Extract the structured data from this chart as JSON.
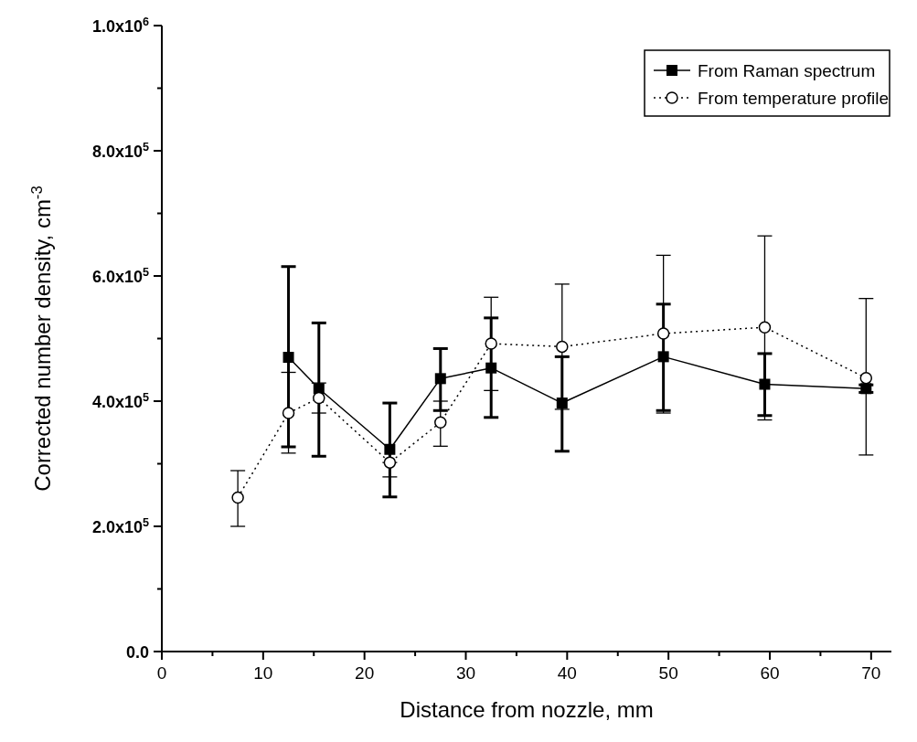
{
  "chart_data": {
    "type": "line",
    "xlabel": "Distance from nozzle, mm",
    "ylabel": "Corrected number density, cm$^{-3}$",
    "xlim": [
      0,
      72
    ],
    "ylim": [
      0,
      1000000
    ],
    "xticks": [
      0,
      {
        "value": 5,
        "label": null
      },
      10,
      {
        "value": 15,
        "label": null
      },
      20,
      {
        "value": 25,
        "label": null
      },
      30,
      {
        "value": 35,
        "label": null
      },
      40,
      {
        "value": 45,
        "label": null
      },
      50,
      {
        "value": 55,
        "label": null
      },
      60,
      {
        "value": 65,
        "label": null
      },
      70
    ],
    "yticks": [
      {
        "value": 0,
        "label": "0.0"
      },
      {
        "value": 100000,
        "label": null
      },
      {
        "value": 200000,
        "label": "2.0x10$^{5}$"
      },
      {
        "value": 300000,
        "label": null
      },
      {
        "value": 400000,
        "label": "4.0x10$^{5}$"
      },
      {
        "value": 500000,
        "label": null
      },
      {
        "value": 600000,
        "label": "6.0x10$^{5}$"
      },
      {
        "value": 700000,
        "label": null
      },
      {
        "value": 800000,
        "label": "8.0x10$^{5}$"
      },
      {
        "value": 900000,
        "label": null
      },
      {
        "value": 1000000,
        "label": "1.0x10$^{6}$"
      }
    ],
    "grid": false,
    "legend": "top right",
    "series": [
      {
        "name": "From Raman spectrum",
        "color": "#000000",
        "marker": "square",
        "line_style": "solid",
        "x": [
          12.5,
          15.5,
          22.5,
          27.5,
          32.5,
          39.5,
          49.5,
          59.5,
          69.5
        ],
        "values": [
          470000,
          420000,
          323000,
          436000,
          453000,
          397000,
          471000,
          427000,
          420000
        ],
        "errors": [
          [
            327000,
            615000
          ],
          [
            312000,
            525000
          ],
          [
            247000,
            397000
          ],
          [
            385000,
            484000
          ],
          [
            374000,
            533000
          ],
          [
            320000,
            471000
          ],
          [
            385000,
            555000
          ],
          [
            377000,
            476000
          ],
          [
            414000,
            426000
          ]
        ]
      },
      {
        "name": "From temperature profile",
        "color": "#000000",
        "marker": "circle",
        "line_style": "dotted",
        "x": [
          7.5,
          12.5,
          15.5,
          22.5,
          27.5,
          32.5,
          39.5,
          49.5,
          59.5,
          69.5
        ],
        "values": [
          246000,
          381000,
          405000,
          302000,
          366000,
          492000,
          487000,
          508000,
          518000,
          437000
        ],
        "errors": [
          [
            200000,
            289000
          ],
          [
            317000,
            446000
          ],
          [
            381000,
            429000
          ],
          [
            279000,
            302000
          ],
          [
            328000,
            400000
          ],
          [
            417000,
            566000
          ],
          [
            387000,
            587000
          ],
          [
            381000,
            633000
          ],
          [
            370000,
            664000
          ],
          [
            314000,
            564000
          ]
        ]
      }
    ]
  }
}
